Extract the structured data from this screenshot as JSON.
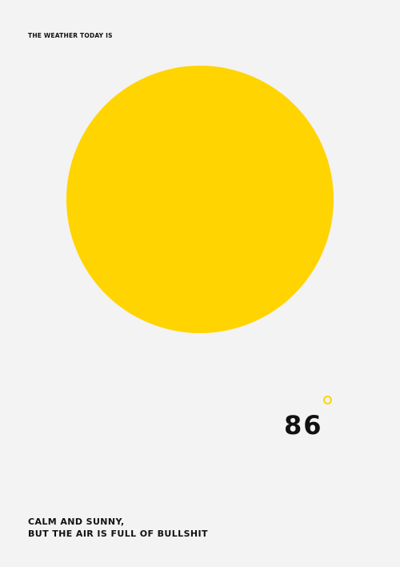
{
  "heading": "THE WEATHER TODAY IS",
  "sun": {
    "icon": "sun-circle-icon",
    "color": "#ffd400"
  },
  "temperature": {
    "value": "86",
    "degree_icon": "degree-ring-icon",
    "degree_color": "#ffd400"
  },
  "caption": {
    "line1": "CALM AND SUNNY,",
    "line2": "BUT THE AIR IS FULL OF BULLSHIT"
  },
  "colors": {
    "background": "#f3f3f3",
    "text": "#111111",
    "accent": "#ffd400"
  }
}
